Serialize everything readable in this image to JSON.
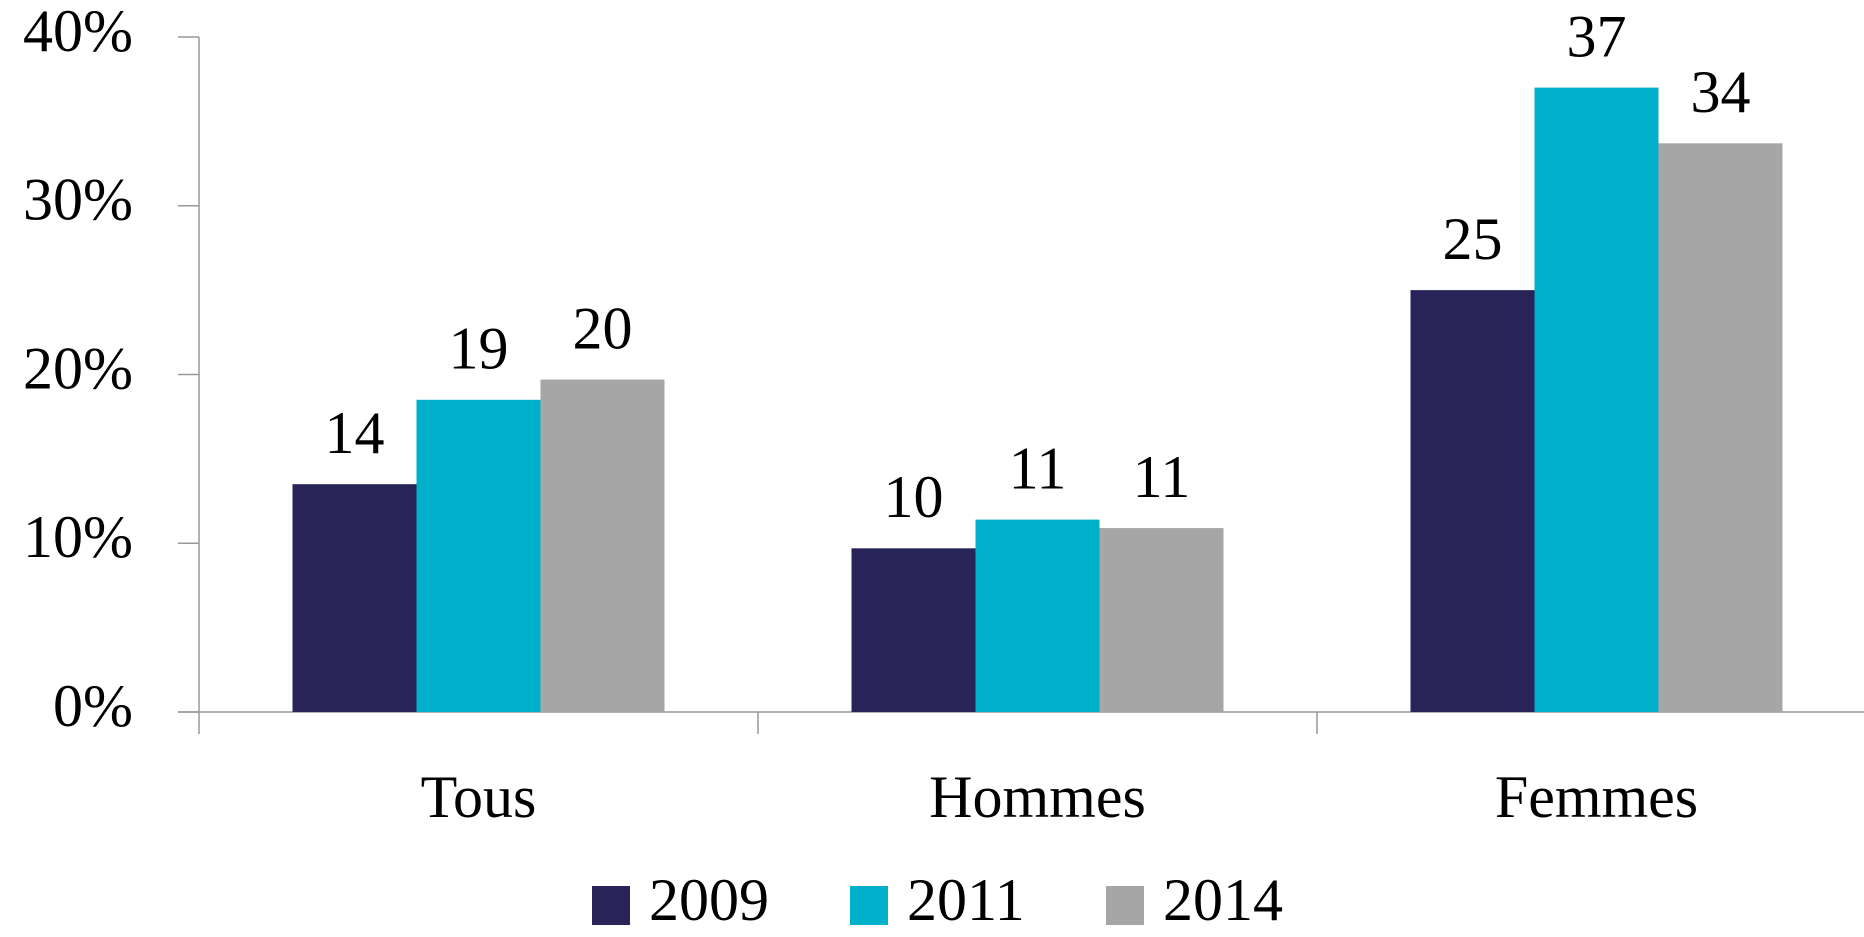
{
  "chart_data": {
    "type": "bar",
    "categories": [
      "Tous",
      "Hommes",
      "Femmes"
    ],
    "series": [
      {
        "name": "2009",
        "color": "#282458",
        "values": [
          13.5,
          9.7,
          25.0
        ],
        "value_labels": [
          "14",
          "10",
          "25"
        ]
      },
      {
        "name": "2011",
        "color": "#00b0ca",
        "values": [
          18.5,
          11.4,
          37.0
        ],
        "value_labels": [
          "19",
          "11",
          "37"
        ]
      },
      {
        "name": "2014",
        "color": "#a6a6a6",
        "values": [
          19.7,
          10.9,
          33.7
        ],
        "value_labels": [
          "20",
          "11",
          "34"
        ]
      }
    ],
    "ylim": [
      0,
      40
    ],
    "yticks": [
      {
        "value": 0,
        "label": "0%"
      },
      {
        "value": 10,
        "label": "10%"
      },
      {
        "value": 20,
        "label": "20%"
      },
      {
        "value": 30,
        "label": "30%"
      },
      {
        "value": 40,
        "label": "40%"
      }
    ],
    "legend": "bottom"
  }
}
